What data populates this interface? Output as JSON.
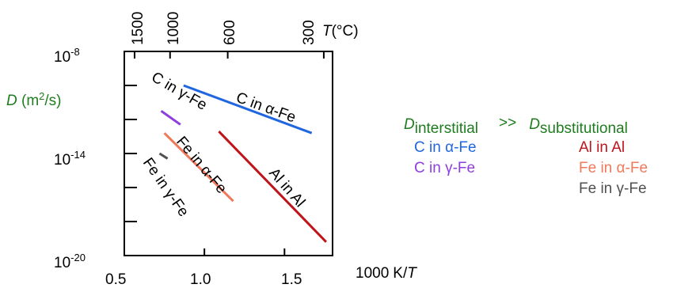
{
  "chart_data": {
    "type": "line",
    "x_axis": {
      "label_value": "1000",
      "label_unit": "K/",
      "label_var": "T",
      "range": [
        0.5,
        1.8
      ],
      "ticks": [
        0.5,
        1.0,
        1.5
      ],
      "tick_labels": [
        "0.5",
        "1.0",
        "1.5"
      ]
    },
    "top_axis": {
      "label_var": "T",
      "label_unit": "(°C)",
      "ticks_celsius": [
        1500,
        1000,
        600,
        300
      ],
      "tick_labels": [
        "1500",
        "1000",
        "600",
        "300"
      ]
    },
    "y_axis": {
      "label_var": "D",
      "label_unit_pre": " (m",
      "label_unit_sup": "2",
      "label_unit_post": "/s)",
      "log_range": [
        -20,
        -8
      ],
      "ticks_log": [
        -8,
        -14,
        -20
      ],
      "tick_base": "10",
      "tick_exponents": [
        "-8",
        "-14",
        "-20"
      ],
      "minor_ticks_log": [
        -10,
        -12,
        -16,
        -18
      ]
    },
    "series": [
      {
        "name": "C in α-Fe",
        "color": "#1f66e0",
        "x": [
          0.87,
          1.67
        ],
        "log_y": [
          -10.0,
          -12.8
        ]
      },
      {
        "name": "C in γ-Fe",
        "color": "#8e3ee0",
        "x": [
          0.73,
          0.85
        ],
        "log_y": [
          -11.5,
          -12.3
        ]
      },
      {
        "name": "Al in Al",
        "color": "#c0141b",
        "x": [
          1.09,
          1.76
        ],
        "log_y": [
          -12.7,
          -19.2
        ]
      },
      {
        "name": "Fe in α-Fe",
        "color": "#f2785a",
        "x": [
          0.75,
          1.18
        ],
        "log_y": [
          -12.8,
          -16.8
        ]
      },
      {
        "name": "Fe in γ-Fe",
        "color": "#505050",
        "x": [
          0.72,
          0.77
        ],
        "log_y": [
          -14.0,
          -14.3
        ]
      }
    ],
    "line_labels": [
      {
        "series": 0,
        "pre": "C in ",
        "greek": "α",
        "post": "-Fe"
      },
      {
        "series": 1,
        "pre": "C in ",
        "greek": "γ",
        "post": "-Fe"
      },
      {
        "series": 2,
        "pre": "Al in Al",
        "greek": "",
        "post": ""
      },
      {
        "series": 3,
        "pre": "Fe in ",
        "greek": "α",
        "post": "-Fe"
      },
      {
        "series": 4,
        "pre": "Fe in ",
        "greek": "γ",
        "post": "-Fe"
      }
    ]
  },
  "comparison": {
    "left_var": "D",
    "left_sub": "interstitial",
    "operator": ">>",
    "right_var": "D",
    "right_sub": "substitutional",
    "interstitial": [
      {
        "pre": "C in ",
        "greek": "α",
        "post": "-Fe",
        "color": "#1f66e0"
      },
      {
        "pre": "C in ",
        "greek": "γ",
        "post": "-Fe",
        "color": "#8e3ee0"
      }
    ],
    "substitutional": [
      {
        "pre": "Al in Al",
        "greek": "",
        "post": "",
        "color": "#c0141b"
      },
      {
        "pre": "Fe in ",
        "greek": "α",
        "post": "-Fe",
        "color": "#f2785a"
      },
      {
        "pre": "Fe in ",
        "greek": "γ",
        "post": "-Fe",
        "color": "#505050"
      }
    ]
  }
}
